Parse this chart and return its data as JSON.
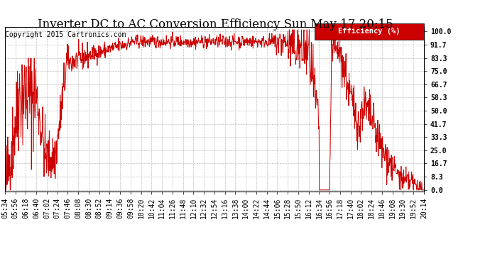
{
  "title": "Inverter DC to AC Conversion Efficiency Sun May 17 20:15",
  "copyright": "Copyright 2015 Cartronics.com",
  "legend_label": "Efficiency (%)",
  "ylabel_ticks": [
    0.0,
    8.3,
    16.7,
    25.0,
    33.3,
    41.7,
    50.0,
    58.3,
    66.7,
    75.0,
    83.3,
    91.7,
    100.0
  ],
  "x_tick_labels": [
    "05:34",
    "05:56",
    "06:18",
    "06:40",
    "07:02",
    "07:24",
    "07:46",
    "08:08",
    "08:30",
    "08:52",
    "09:14",
    "09:36",
    "09:58",
    "10:20",
    "10:42",
    "11:04",
    "11:26",
    "11:48",
    "12:10",
    "12:32",
    "12:54",
    "13:16",
    "13:38",
    "14:00",
    "14:22",
    "14:44",
    "15:06",
    "15:28",
    "15:50",
    "16:12",
    "16:34",
    "16:56",
    "17:18",
    "17:40",
    "18:02",
    "18:24",
    "18:46",
    "19:08",
    "19:30",
    "19:52",
    "20:14"
  ],
  "line_color": "#cc0000",
  "background_color": "#ffffff",
  "grid_color": "#b0b0b0",
  "title_fontsize": 12,
  "copyright_fontsize": 7,
  "tick_fontsize": 7,
  "legend_bg": "#cc0000",
  "legend_text_color": "#ffffff"
}
